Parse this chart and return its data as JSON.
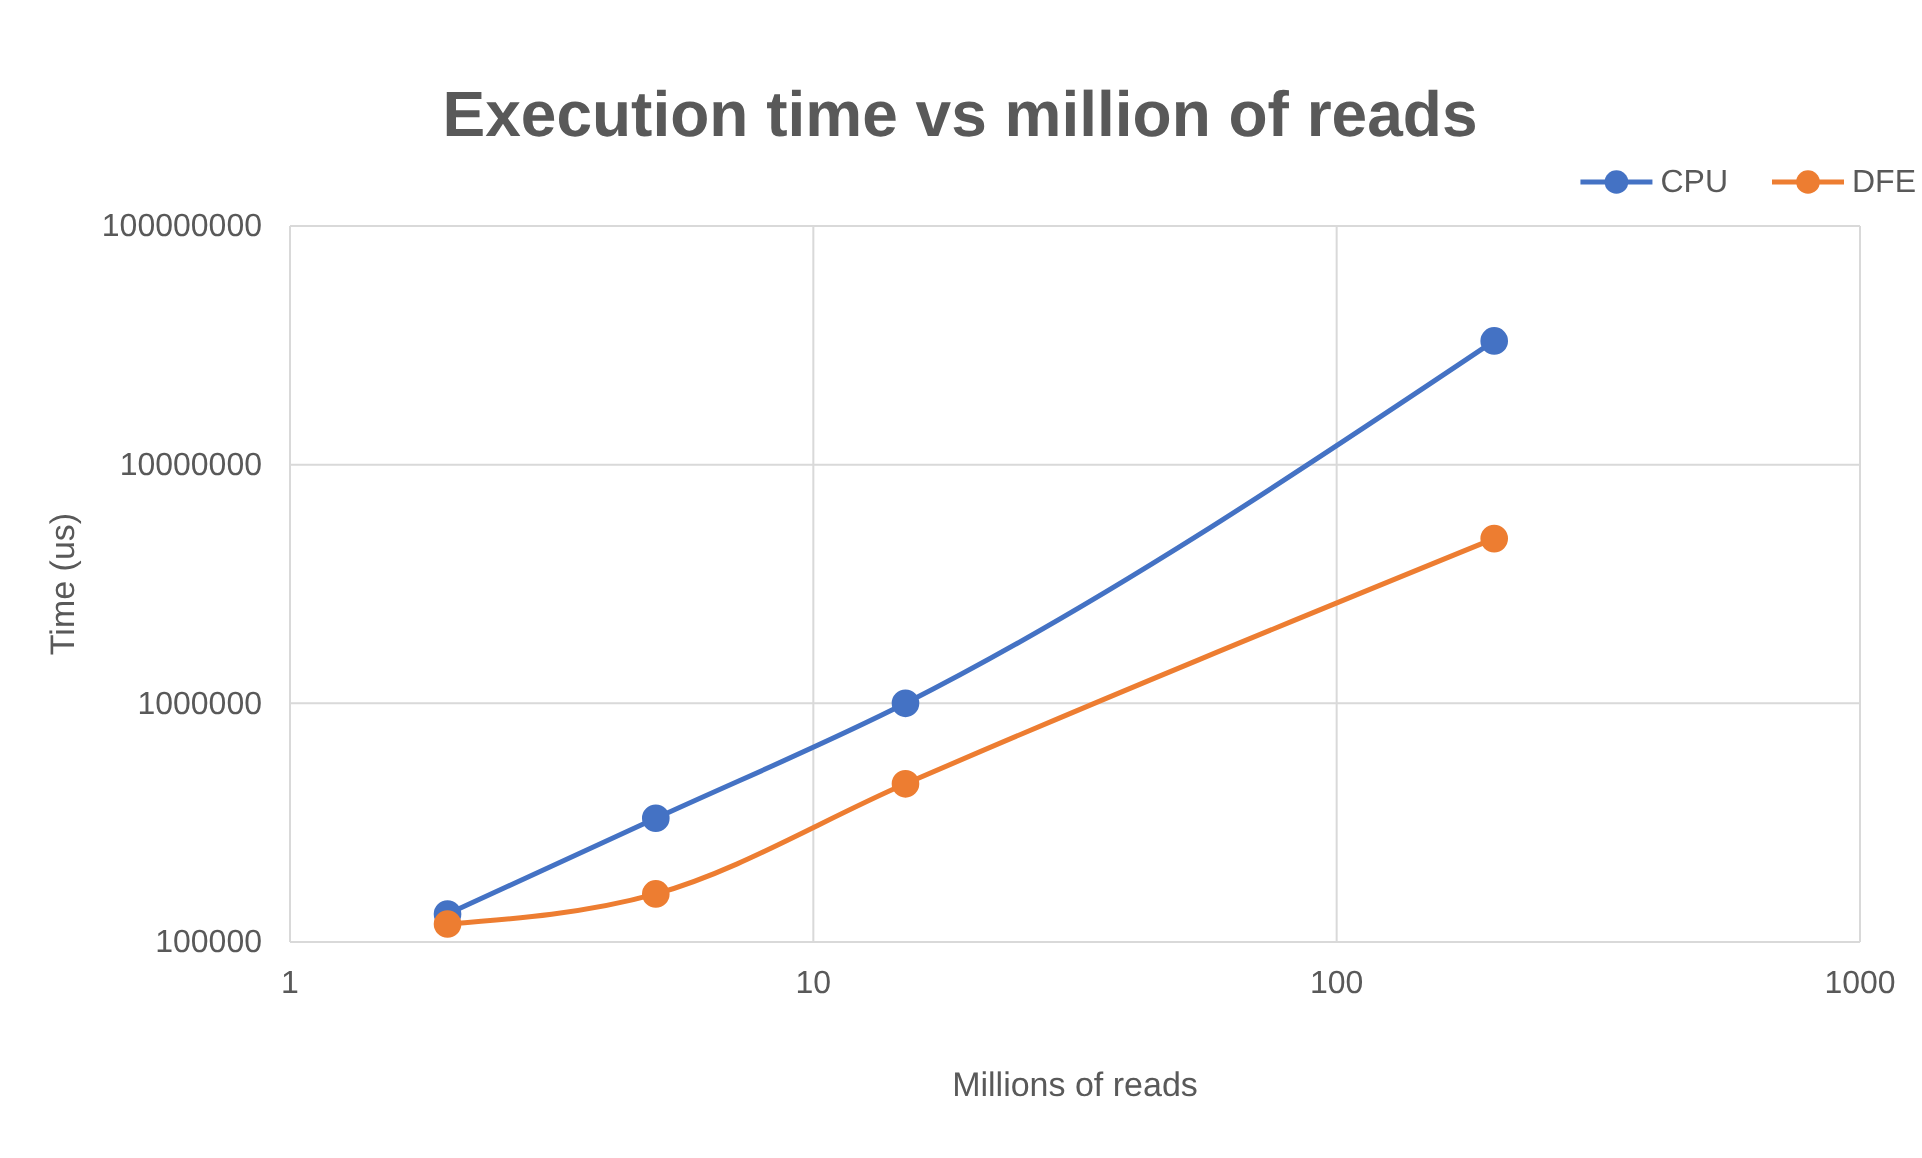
{
  "chart_data": {
    "type": "line",
    "title": "Execution time vs million of reads",
    "xlabel": "Millions of reads",
    "ylabel": "Time (us)",
    "log": "xy",
    "grid": true,
    "legend": "top right",
    "marker": "circle",
    "line_style": "solid",
    "x": [
      2,
      5,
      15,
      200
    ],
    "xlim": [
      1,
      1000
    ],
    "xticks": [
      1,
      10,
      100,
      1000
    ],
    "ylim": [
      100000,
      100000000
    ],
    "yticks": [
      100000,
      1000000,
      10000000,
      100000000
    ],
    "series": [
      {
        "name": "CPU",
        "color": "#4472c4",
        "values": [
          131000,
          330000,
          1000000,
          33000000
        ]
      },
      {
        "name": "DFE",
        "color": "#ed7d31",
        "values": [
          119000,
          159000,
          460000,
          4900000
        ]
      }
    ]
  }
}
